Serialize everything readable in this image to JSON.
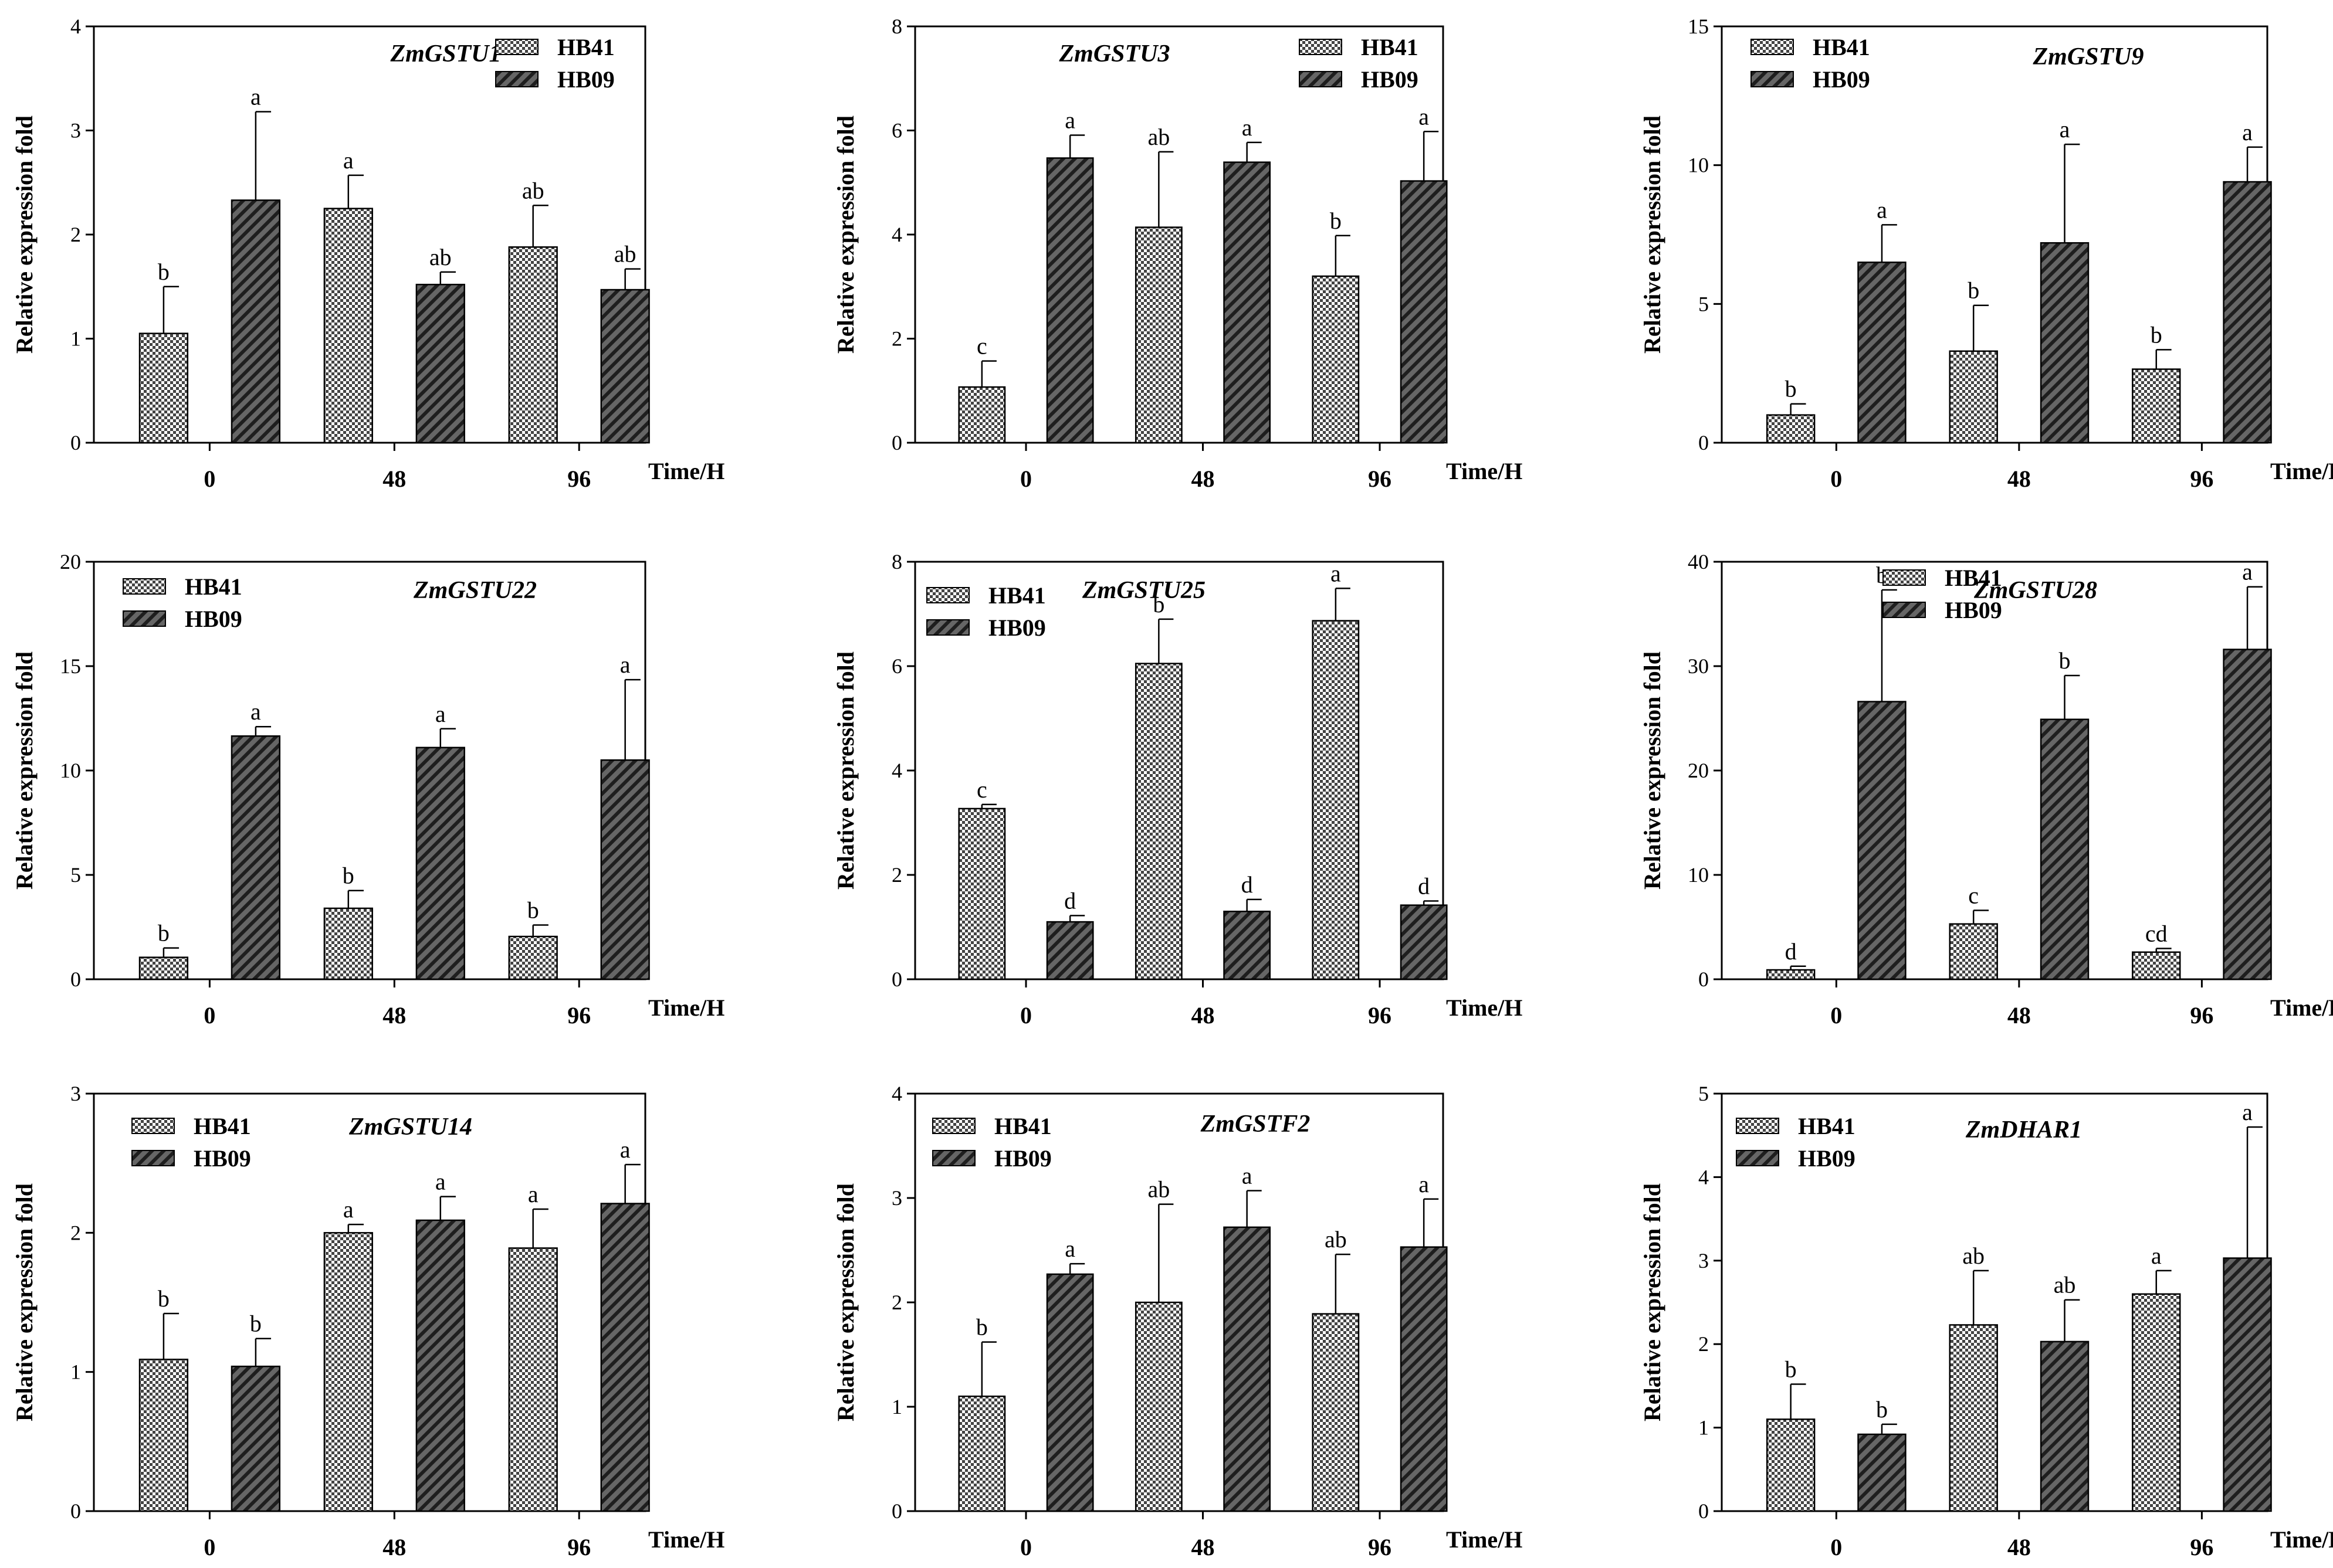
{
  "chart_data": [
    {
      "type": "bar",
      "title": "ZmGSTU1",
      "ylabel": "Relative expression fold",
      "xlabel": "Time/H",
      "categories": [
        "0",
        "48",
        "96"
      ],
      "ylim": [
        0,
        4
      ],
      "yticks": [
        0,
        1,
        2,
        3,
        4
      ],
      "legend_position": "top-right",
      "series": [
        {
          "name": "HB41",
          "values": [
            1.05,
            2.25,
            1.88
          ],
          "errors": [
            0.45,
            0.32,
            0.4
          ],
          "labels": [
            "b",
            "a",
            "ab"
          ]
        },
        {
          "name": "HB09",
          "values": [
            2.33,
            1.52,
            1.47
          ],
          "errors": [
            0.85,
            0.12,
            0.2
          ],
          "labels": [
            "a",
            "ab",
            "ab"
          ]
        }
      ]
    },
    {
      "type": "bar",
      "title": "ZmGSTU3",
      "ylabel": "Relative expression fold",
      "xlabel": "Time/H",
      "categories": [
        "0",
        "48",
        "96"
      ],
      "ylim": [
        0,
        8
      ],
      "yticks": [
        0,
        2,
        4,
        6,
        8
      ],
      "legend_position": "top-right",
      "series": [
        {
          "name": "HB41",
          "values": [
            1.07,
            4.14,
            3.2
          ],
          "errors": [
            0.5,
            1.45,
            0.78
          ],
          "labels": [
            "c",
            "ab",
            "b"
          ]
        },
        {
          "name": "HB09",
          "values": [
            5.47,
            5.39,
            5.03
          ],
          "errors": [
            0.44,
            0.38,
            0.95
          ],
          "labels": [
            "a",
            "a",
            "a"
          ]
        }
      ]
    },
    {
      "type": "bar",
      "title": "ZmGSTU9",
      "ylabel": "Relative expression fold",
      "xlabel": "Time/H",
      "categories": [
        "0",
        "48",
        "96"
      ],
      "ylim": [
        0,
        15
      ],
      "yticks": [
        0,
        5,
        10,
        15
      ],
      "legend_position": "top-left",
      "series": [
        {
          "name": "HB41",
          "values": [
            1.0,
            3.3,
            2.65
          ],
          "errors": [
            0.4,
            1.65,
            0.7
          ],
          "labels": [
            "b",
            "b",
            "b"
          ]
        },
        {
          "name": "HB09",
          "values": [
            6.5,
            7.2,
            9.4
          ],
          "errors": [
            1.35,
            3.55,
            1.25
          ],
          "labels": [
            "a",
            "a",
            "a"
          ]
        }
      ]
    },
    {
      "type": "bar",
      "title": "ZmGSTU22",
      "ylabel": "Relative expression fold",
      "xlabel": "Time/H",
      "categories": [
        "0",
        "48",
        "96"
      ],
      "ylim": [
        0,
        20
      ],
      "yticks": [
        0,
        5,
        10,
        15,
        20
      ],
      "legend_position": "top-left",
      "series": [
        {
          "name": "HB41",
          "values": [
            1.05,
            3.4,
            2.05
          ],
          "errors": [
            0.45,
            0.85,
            0.55
          ],
          "labels": [
            "b",
            "b",
            "b"
          ]
        },
        {
          "name": "HB09",
          "values": [
            11.65,
            11.1,
            10.5
          ],
          "errors": [
            0.45,
            0.9,
            3.85
          ],
          "labels": [
            "a",
            "a",
            "a"
          ]
        }
      ]
    },
    {
      "type": "bar",
      "title": "ZmGSTU25",
      "ylabel": "Relative expression fold",
      "xlabel": "Time/H",
      "categories": [
        "0",
        "48",
        "96"
      ],
      "ylim": [
        0,
        8
      ],
      "yticks": [
        0,
        2,
        4,
        6,
        8
      ],
      "legend_position": "top-left",
      "series": [
        {
          "name": "HB41",
          "values": [
            3.27,
            6.05,
            6.87
          ],
          "errors": [
            0.08,
            0.85,
            0.62
          ],
          "labels": [
            "c",
            "b",
            "a"
          ]
        },
        {
          "name": "HB09",
          "values": [
            1.1,
            1.3,
            1.42
          ],
          "errors": [
            0.12,
            0.23,
            0.08
          ],
          "labels": [
            "d",
            "d",
            "d"
          ]
        }
      ]
    },
    {
      "type": "bar",
      "title": "ZmGSTU28",
      "ylabel": "Relative expression fold",
      "xlabel": "Time/H",
      "categories": [
        "0",
        "48",
        "96"
      ],
      "ylim": [
        0,
        40
      ],
      "yticks": [
        0,
        10,
        20,
        30,
        40
      ],
      "legend_position": "top-center",
      "series": [
        {
          "name": "HB41",
          "values": [
            0.9,
            5.3,
            2.6
          ],
          "errors": [
            0.35,
            1.3,
            0.35
          ],
          "labels": [
            "d",
            "c",
            "cd"
          ]
        },
        {
          "name": "HB09",
          "values": [
            26.6,
            24.9,
            31.6
          ],
          "errors": [
            10.7,
            4.2,
            6.0
          ],
          "labels": [
            "b",
            "b",
            "a"
          ]
        }
      ]
    },
    {
      "type": "bar",
      "title": "ZmGSTU14",
      "ylabel": "Relative expression fold",
      "xlabel": "Time/H",
      "categories": [
        "0",
        "48",
        "96"
      ],
      "ylim": [
        0,
        3
      ],
      "yticks": [
        0,
        1,
        2,
        3
      ],
      "legend_position": "top-left",
      "series": [
        {
          "name": "HB41",
          "values": [
            1.09,
            2.0,
            1.89
          ],
          "errors": [
            0.33,
            0.06,
            0.28
          ],
          "labels": [
            "b",
            "a",
            "a"
          ]
        },
        {
          "name": "HB09",
          "values": [
            1.04,
            2.09,
            2.21
          ],
          "errors": [
            0.2,
            0.17,
            0.28
          ],
          "labels": [
            "b",
            "a",
            "a"
          ]
        }
      ]
    },
    {
      "type": "bar",
      "title": "ZmGSTF2",
      "ylabel": "Relative expression fold",
      "xlabel": "Time/H",
      "categories": [
        "0",
        "48",
        "96"
      ],
      "ylim": [
        0,
        4
      ],
      "yticks": [
        0,
        1,
        2,
        3,
        4
      ],
      "legend_position": "top-left",
      "series": [
        {
          "name": "HB41",
          "values": [
            1.1,
            2.0,
            1.89
          ],
          "errors": [
            0.52,
            0.94,
            0.57
          ],
          "labels": [
            "b",
            "ab",
            "ab"
          ]
        },
        {
          "name": "HB09",
          "values": [
            2.27,
            2.72,
            2.53
          ],
          "errors": [
            0.1,
            0.35,
            0.46
          ],
          "labels": [
            "a",
            "a",
            "a"
          ]
        }
      ]
    },
    {
      "type": "bar",
      "title": "ZmDHAR1",
      "ylabel": "Relative expression fold",
      "xlabel": "Time/H",
      "categories": [
        "0",
        "48",
        "96"
      ],
      "ylim": [
        0,
        5
      ],
      "yticks": [
        0,
        1,
        2,
        3,
        4,
        5
      ],
      "legend_position": "top-left",
      "series": [
        {
          "name": "HB41",
          "values": [
            1.1,
            2.23,
            2.6
          ],
          "errors": [
            0.42,
            0.65,
            0.28
          ],
          "labels": [
            "b",
            "ab",
            "a"
          ]
        },
        {
          "name": "HB09",
          "values": [
            0.92,
            2.03,
            3.03
          ],
          "errors": [
            0.12,
            0.5,
            1.57
          ],
          "labels": [
            "b",
            "ab",
            "a"
          ]
        }
      ]
    }
  ]
}
